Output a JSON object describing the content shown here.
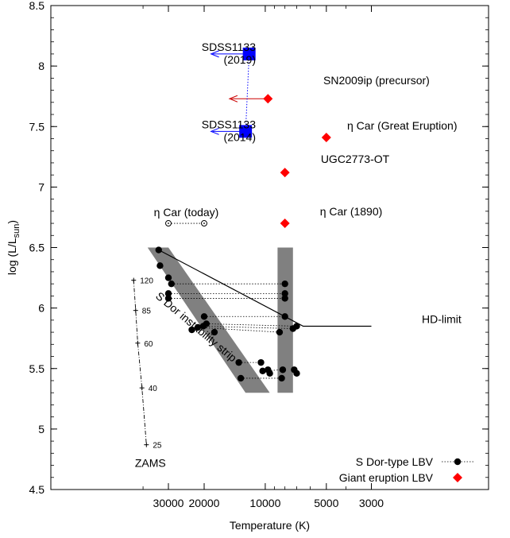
{
  "chart_data": {
    "type": "scatter",
    "title": "",
    "xlabel": "Temperature (K)",
    "ylabel": "log (L/L",
    "ylabel_sub": "sun",
    "ylabel_close": ")",
    "x_scale": "log",
    "x_reversed": true,
    "xlim": [
      50000,
      3000
    ],
    "ylim": [
      4.5,
      8.5
    ],
    "xticks": [
      {
        "value": 30000,
        "label": "30000"
      },
      {
        "value": 20000,
        "label": "20000"
      },
      {
        "value": 10000,
        "label": "10000"
      },
      {
        "value": 5000,
        "label": "5000"
      },
      {
        "value": 3000,
        "label": "3000"
      }
    ],
    "yticks": [
      {
        "value": 4.5,
        "label": "4.5"
      },
      {
        "value": 5,
        "label": "5"
      },
      {
        "value": 5.5,
        "label": "5.5"
      },
      {
        "value": 6,
        "label": "6"
      },
      {
        "value": 6.5,
        "label": "6.5"
      },
      {
        "value": 7,
        "label": "7"
      },
      {
        "value": 7.5,
        "label": "7.5"
      },
      {
        "value": 8,
        "label": "8"
      },
      {
        "value": 8.5,
        "label": "8.5"
      }
    ],
    "grid": false,
    "legend_position": "bottom-right",
    "legend": [
      {
        "label": "S Dor-type LBV",
        "marker": "circle",
        "color": "#000000"
      },
      {
        "label": "Giant eruption LBV",
        "marker": "diamond",
        "color": "#ff0000"
      }
    ],
    "sdor_pairs": [
      {
        "hot": [
          33500,
          6.48
        ],
        "cool": null
      },
      {
        "hot": [
          33000,
          6.35
        ],
        "cool": null
      },
      {
        "hot": [
          30000,
          6.25
        ],
        "cool": null
      },
      {
        "hot": [
          29000,
          6.2
        ],
        "cool": [
          8000,
          6.2
        ]
      },
      {
        "hot": [
          30000,
          6.12
        ],
        "cool": [
          8000,
          6.12
        ]
      },
      {
        "hot": [
          30000,
          6.08
        ],
        "cool": [
          8000,
          6.08
        ]
      },
      {
        "hot": [
          20000,
          5.93
        ],
        "cool": [
          8000,
          5.93
        ]
      },
      {
        "hot": [
          19500,
          5.87
        ],
        "cool": [
          7000,
          5.85
        ]
      },
      {
        "hot": [
          20200,
          5.85
        ],
        "cool": [
          7300,
          5.83
        ]
      },
      {
        "hot": [
          21500,
          5.84
        ],
        "cool": [
          8500,
          5.8
        ]
      },
      {
        "hot": [
          23000,
          5.82
        ],
        "cool": null
      },
      {
        "hot": [
          17800,
          5.8
        ],
        "cool": null
      },
      {
        "hot": [
          13500,
          5.55
        ],
        "cool": [
          10500,
          5.55
        ]
      },
      {
        "hot": [
          13200,
          5.42
        ],
        "cool": [
          8300,
          5.42
        ]
      },
      {
        "hot": [
          null,
          null
        ],
        "cool": [
          9700,
          5.49
        ]
      },
      {
        "hot": [
          null,
          null
        ],
        "cool": [
          9500,
          5.46
        ]
      },
      {
        "hot": [
          10300,
          5.48
        ],
        "cool": [
          8200,
          5.49
        ]
      },
      {
        "hot": [
          null,
          null
        ],
        "cool": [
          7200,
          5.49
        ]
      },
      {
        "hot": [
          null,
          null
        ],
        "cool": [
          7000,
          5.46
        ]
      }
    ],
    "sdor_connections_y": [
      6.2,
      6.12,
      6.08,
      5.93,
      5.87,
      5.55,
      5.42
    ],
    "giant_eruptions": [
      {
        "label": "SN2009ip (precursor)",
        "x": 9700,
        "y": 7.73
      },
      {
        "label": "η Car (Great Eruption)",
        "x": 5000,
        "y": 7.41
      },
      {
        "label": "UGC2773-OT",
        "x": 8000,
        "y": 7.12
      },
      {
        "label": "η Car (1890)",
        "x": 8000,
        "y": 6.7
      }
    ],
    "sdss1133": [
      {
        "label": "SDSS1133",
        "year": "(2019)",
        "x": 12000,
        "y": 8.1
      },
      {
        "label": "SDSS1133",
        "year": "(2014)",
        "x": 12500,
        "y": 7.46
      }
    ],
    "upper_limit_arrows": [
      {
        "from": [
          12000,
          8.1
        ],
        "to": [
          18500,
          8.1
        ],
        "color": "#0000ff"
      },
      {
        "from": [
          9700,
          7.73
        ],
        "to": [
          15000,
          7.73
        ],
        "color": "#cc0000"
      },
      {
        "from": [
          12500,
          7.46
        ],
        "to": [
          18500,
          7.46
        ],
        "color": "#0000ff"
      }
    ],
    "eta_car_today": {
      "label": "η Car (today)",
      "x1": 30000,
      "x2": 20000,
      "y": 6.7
    },
    "instability_strip_label": "S Dor instability strip",
    "instability_strip": [
      [
        38000,
        6.5
      ],
      [
        30000,
        6.5
      ],
      [
        9500,
        5.3
      ],
      [
        12500,
        5.3
      ]
    ],
    "cool_band": [
      [
        8700,
        6.5
      ],
      [
        7300,
        6.5
      ],
      [
        7300,
        5.3
      ],
      [
        8700,
        5.3
      ]
    ],
    "hd_limit": {
      "label": "HD-limit",
      "points": [
        [
          33500,
          6.48
        ],
        [
          6500,
          5.85
        ],
        [
          3000,
          5.85
        ]
      ]
    },
    "zams": {
      "label": "ZAMS",
      "points": [
        {
          "x": 44500,
          "y": 6.23,
          "mass": "120"
        },
        {
          "x": 43500,
          "y": 5.98,
          "mass": "85"
        },
        {
          "x": 42500,
          "y": 5.71,
          "mass": "60"
        },
        {
          "x": 40500,
          "y": 5.34,
          "mass": "40"
        },
        {
          "x": 38500,
          "y": 4.87,
          "mass": "25"
        }
      ]
    },
    "colors": {
      "blue": "#0000ff",
      "red": "#ff0000",
      "band": "#808080",
      "black": "#000000"
    }
  }
}
